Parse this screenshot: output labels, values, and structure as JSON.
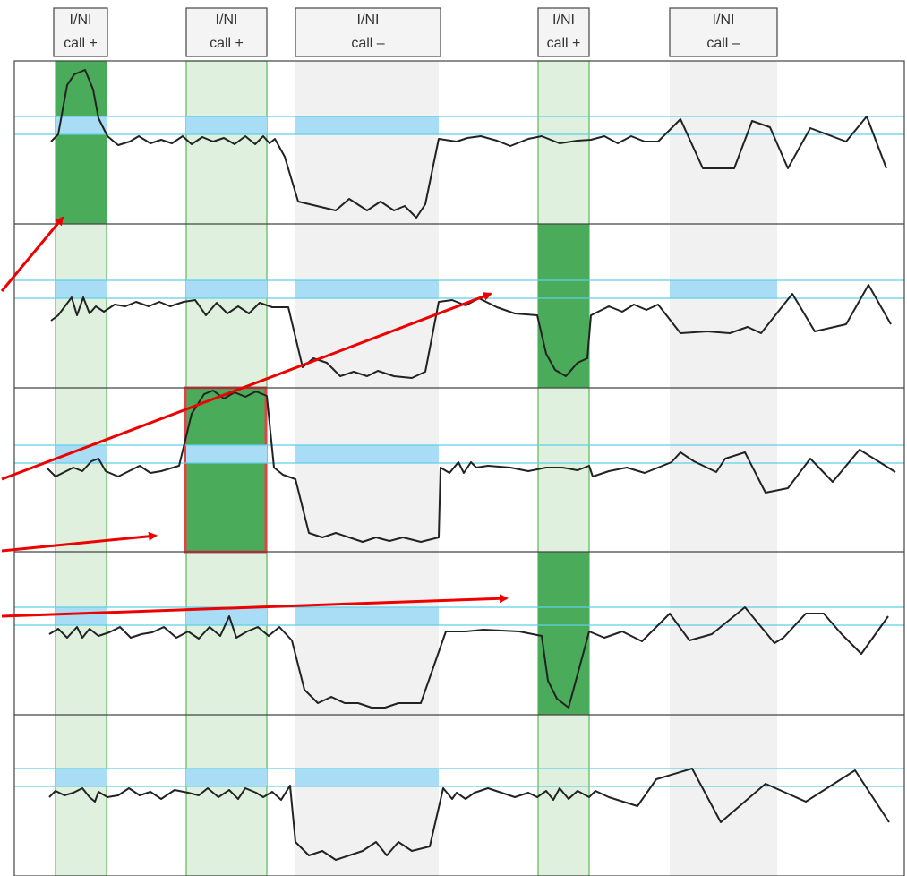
{
  "columns": [
    {
      "line1": "I/NI",
      "line2": "call +",
      "kind": "positive"
    },
    {
      "line1": "I/NI",
      "line2": "call +",
      "kind": "positive"
    },
    {
      "line1": "I/NI",
      "line2": "call –",
      "kind": "negative"
    },
    {
      "line1": "I/NI",
      "line2": "call +",
      "kind": "positive"
    },
    {
      "line1": "I/NI",
      "line2": "call –",
      "kind": "negative"
    }
  ],
  "rows": [
    {
      "calls": [
        "gain",
        "none",
        "none",
        "none",
        "none"
      ]
    },
    {
      "calls": [
        "none",
        "none",
        "none",
        "loss",
        "none"
      ]
    },
    {
      "calls": [
        "none",
        "gain",
        "none",
        "none",
        "none"
      ]
    },
    {
      "calls": [
        "none",
        "none",
        "none",
        "loss",
        "none"
      ]
    },
    {
      "calls": [
        "none",
        "none",
        "none",
        "none",
        "none"
      ]
    }
  ],
  "highlighted_cell": {
    "row": 2,
    "column": 1
  },
  "colors": {
    "positive_column": "#dff0df",
    "positive_column_border": "#5cb85c",
    "negative_column": "#f1f1f1",
    "call_cell": "#4aab5a",
    "expected_band": "#a9dcf5",
    "reference_line": "#5fd0e8",
    "highlight_border": "#e04545",
    "arrow": "#ee0000",
    "trace": "#222222"
  }
}
